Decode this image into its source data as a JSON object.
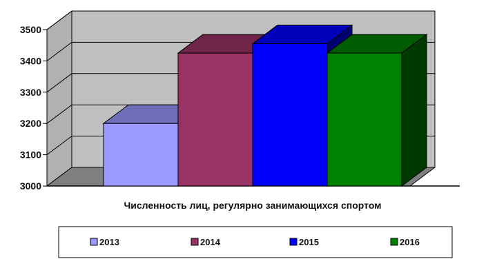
{
  "chart_data": {
    "type": "bar",
    "style": "3d",
    "title": "",
    "xlabel": "Численность лиц, регулярно занимающихся спортом",
    "ylabel": "",
    "ylim": [
      3000,
      3500
    ],
    "yticks": [
      3000,
      3100,
      3200,
      3300,
      3400,
      3500
    ],
    "grid": true,
    "legend_position": "bottom",
    "series": [
      {
        "name": "2013",
        "values": [
          3200
        ],
        "color": "#9999ff"
      },
      {
        "name": "2014",
        "values": [
          3425
        ],
        "color": "#993366"
      },
      {
        "name": "2015",
        "values": [
          3455
        ],
        "color": "#0000ff"
      },
      {
        "name": "2016",
        "values": [
          3425
        ],
        "color": "#008000"
      }
    ],
    "colors": {
      "back_wall": "#c0c0c0",
      "floor": "#7f7f7f",
      "grid": "#000000"
    }
  }
}
